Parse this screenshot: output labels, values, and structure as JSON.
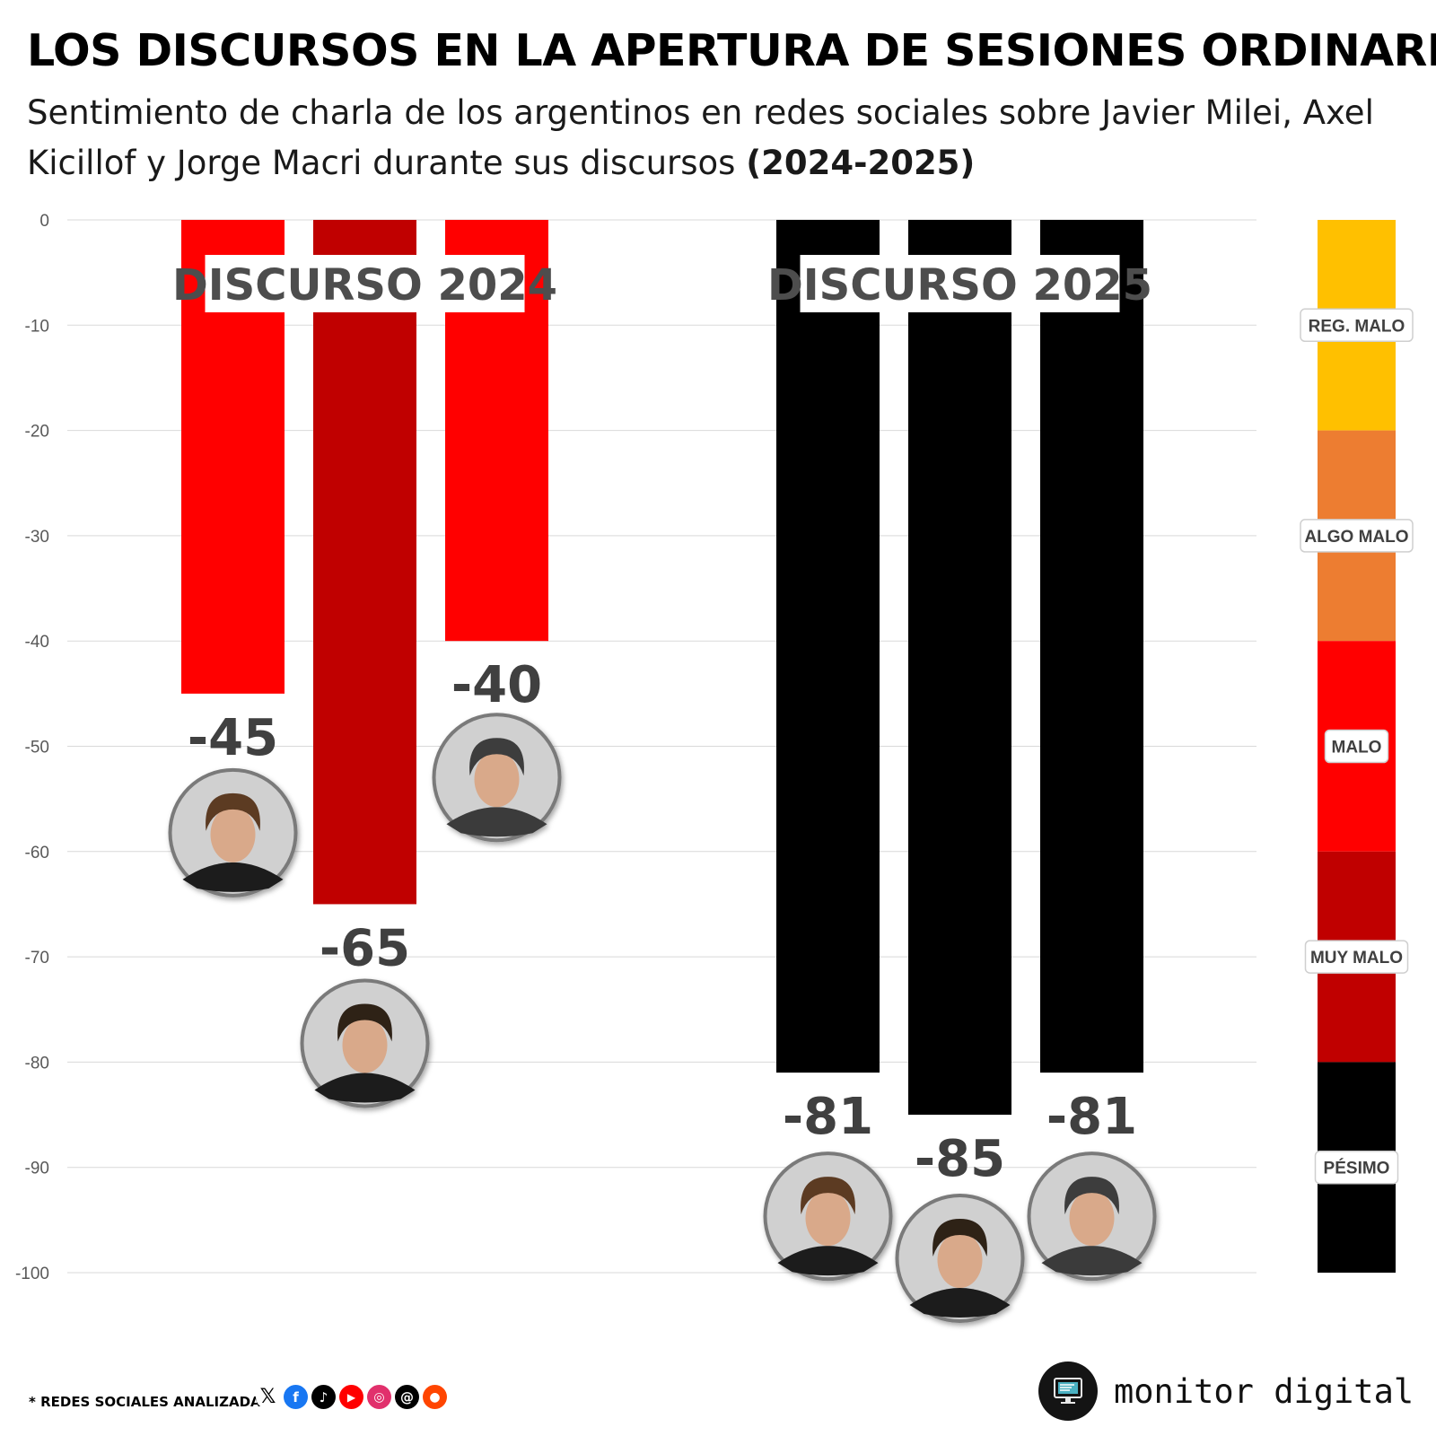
{
  "header": {
    "title": "LOS DISCURSOS EN LA APERTURA DE SESIONES ORDINARIAS",
    "subtitle_main": "Sentimiento de charla de los argentinos en redes sociales sobre Javier Milei, Axel Kicillof y Jorge Macri durante sus discursos",
    "subtitle_years": "(2024-2025)"
  },
  "chart_data": {
    "type": "bar",
    "title": "LOS DISCURSOS EN LA APERTURA DE SESIONES ORDINARIAS",
    "ylim": [
      -100,
      0
    ],
    "yticks": [
      0,
      -10,
      -20,
      -30,
      -40,
      -50,
      -60,
      -70,
      -80,
      -90,
      -100
    ],
    "grid": true,
    "groups": [
      {
        "label": "DISCURSO 2024",
        "bars": [
          {
            "person": "Javier Milei",
            "value": -45,
            "label": "-45",
            "color": "#ff0000"
          },
          {
            "person": "Axel Kicillof",
            "value": -65,
            "label": "-65",
            "color": "#c00000"
          },
          {
            "person": "Jorge Macri",
            "value": -40,
            "label": "-40",
            "color": "#ff0000"
          }
        ]
      },
      {
        "label": "DISCURSO 2025",
        "bars": [
          {
            "person": "Javier Milei",
            "value": -81,
            "label": "-81",
            "color": "#000000"
          },
          {
            "person": "Axel Kicillof",
            "value": -85,
            "label": "-85",
            "color": "#000000"
          },
          {
            "person": "Jorge Macri",
            "value": -81,
            "label": "-81",
            "color": "#000000"
          }
        ]
      }
    ],
    "legend_scale": [
      {
        "label": "REG. MALO",
        "from": 0,
        "to": -20,
        "color": "#ffc000"
      },
      {
        "label": "ALGO MALO",
        "from": -20,
        "to": -40,
        "color": "#ed7d31"
      },
      {
        "label": "MALO",
        "from": -40,
        "to": -60,
        "color": "#ff0000"
      },
      {
        "label": "MUY MALO",
        "from": -60,
        "to": -80,
        "color": "#c00000"
      },
      {
        "label": "PÉSIMO",
        "from": -80,
        "to": -100,
        "color": "#000000"
      }
    ]
  },
  "footer": {
    "note": "* REDES SOCIALES ANALIZADAS",
    "social_icons": [
      "x-icon",
      "facebook-icon",
      "tiktok-icon",
      "youtube-icon",
      "instagram-icon",
      "threads-icon",
      "reddit-icon"
    ],
    "brand": "monitor digital"
  }
}
